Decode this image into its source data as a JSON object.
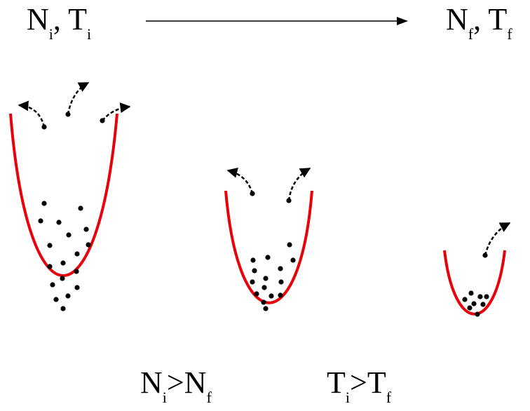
{
  "labels": {
    "initial_N": "N",
    "initial_N_sub": "i",
    "initial_sep": ", ",
    "initial_T": "T",
    "initial_T_sub": "i",
    "final_N": "N",
    "final_N_sub": "f",
    "final_sep": ", ",
    "final_T": "T",
    "final_T_sub": "f",
    "relation_N_left": "N",
    "relation_N_left_sub": "i",
    "relation_N_op": ">",
    "relation_N_right": "N",
    "relation_N_right_sub": "f",
    "relation_T_left": "T",
    "relation_T_left_sub": "i",
    "relation_T_op": ">",
    "relation_T_right": "T",
    "relation_T_right_sub": "f"
  },
  "colors": {
    "trap": "#e8000b",
    "atom": "#000000",
    "arrow": "#000000"
  }
}
